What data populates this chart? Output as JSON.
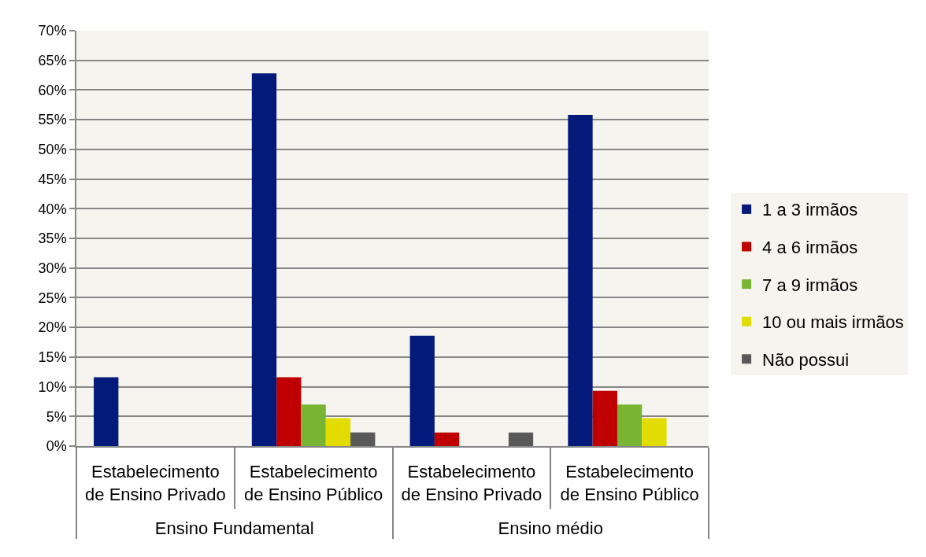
{
  "chart_data": {
    "type": "bar",
    "categories": [
      "Estabelecimento de Ensino Privado",
      "Estabelecimento de Ensino Público",
      "Estabelecimento de Ensino Privado",
      "Estabelecimento de Ensino Público"
    ],
    "annotations": [
      "Ensino Fundamental",
      "Ensino médio"
    ],
    "series": [
      {
        "name": "1 a 3 irmãos",
        "color": "#031a7b",
        "values": [
          11.6,
          62.8,
          18.6,
          55.8
        ]
      },
      {
        "name": "4 a 6 irmãos",
        "color": "#c00000",
        "values": [
          null,
          11.6,
          2.3,
          9.3
        ]
      },
      {
        "name": "7 a 9 irmãos",
        "color": "#77b533",
        "values": [
          null,
          7.0,
          null,
          7.0
        ]
      },
      {
        "name": "10 ou mais irmãos",
        "color": "#e2dc00",
        "values": [
          null,
          4.7,
          null,
          4.7
        ]
      },
      {
        "name": "Não possui",
        "color": "#595959",
        "values": [
          null,
          2.3,
          2.3,
          null
        ]
      }
    ],
    "ylim": [
      0,
      70
    ],
    "yticks": [
      {
        "value": 0,
        "label": "0%"
      },
      {
        "value": 5,
        "label": "5%"
      },
      {
        "value": 10,
        "label": "10%"
      },
      {
        "value": 15,
        "label": "15%"
      },
      {
        "value": 20,
        "label": "20%"
      },
      {
        "value": 25,
        "label": "25%"
      },
      {
        "value": 30,
        "label": "30%"
      },
      {
        "value": 35,
        "label": "35%"
      },
      {
        "value": 40,
        "label": "40%"
      },
      {
        "value": 45,
        "label": "45%"
      },
      {
        "value": 50,
        "label": "50%"
      },
      {
        "value": 55,
        "label": "55%"
      },
      {
        "value": 60,
        "label": "60%"
      },
      {
        "value": 65,
        "label": "65%"
      },
      {
        "value": 70,
        "label": "70%"
      }
    ],
    "grid": "y",
    "legend": "right"
  }
}
